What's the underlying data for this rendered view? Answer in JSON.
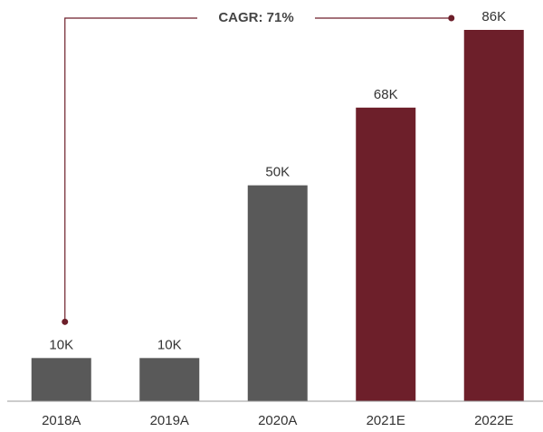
{
  "chart_data": {
    "type": "bar",
    "annotation": "CAGR: 71%",
    "categories": [
      "2018A",
      "2019A",
      "2020A",
      "2021E",
      "2022E"
    ],
    "values": [
      10,
      10,
      50,
      68,
      86
    ],
    "value_labels": [
      "10K",
      "10K",
      "50K",
      "68K",
      "86K"
    ],
    "colors": [
      "#595959",
      "#595959",
      "#595959",
      "#6d1f2a",
      "#6d1f2a"
    ]
  }
}
